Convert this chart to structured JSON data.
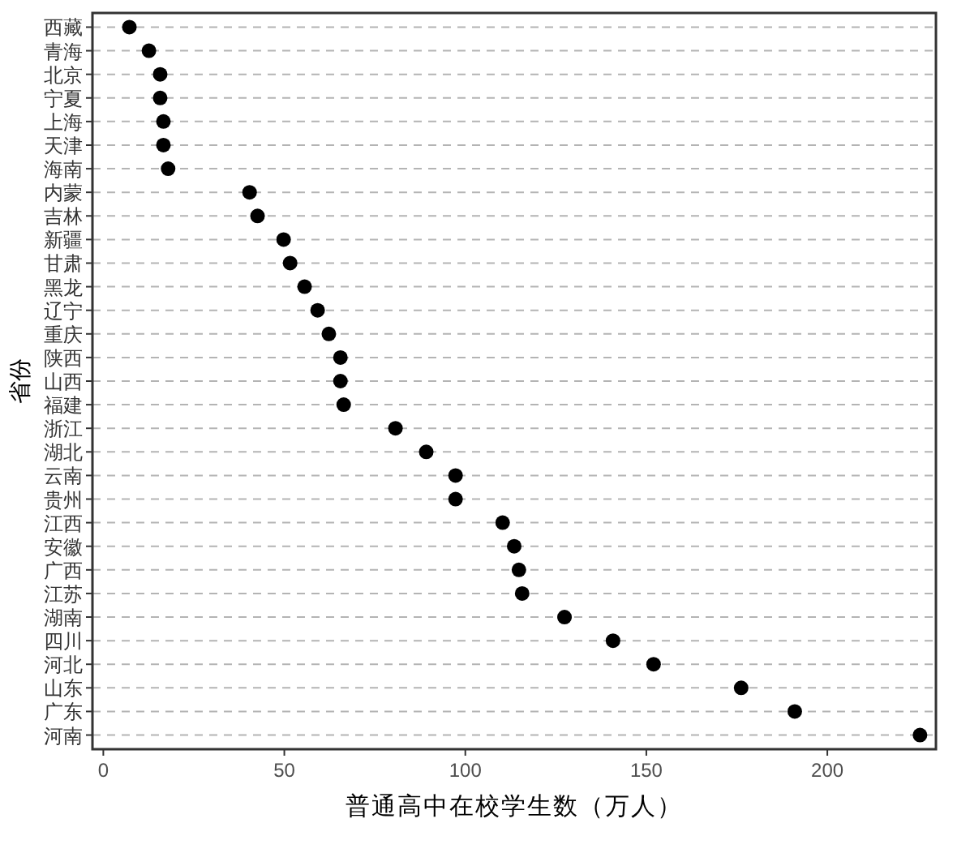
{
  "chart_data": {
    "type": "scatter",
    "orientation": "horizontal",
    "xlabel": "普通高中在校学生数（万人）",
    "ylabel": "省份",
    "categories": [
      "西藏",
      "青海",
      "北京",
      "宁夏",
      "上海",
      "天津",
      "海南",
      "内蒙",
      "吉林",
      "新疆",
      "甘肃",
      "黑龙",
      "辽宁",
      "重庆",
      "陕西",
      "山西",
      "福建",
      "浙江",
      "湖北",
      "云南",
      "贵州",
      "江西",
      "安徽",
      "广西",
      "江苏",
      "湖南",
      "四川",
      "河北",
      "山东",
      "广东",
      "河南"
    ],
    "values": [
      7.2,
      12.6,
      15.7,
      15.7,
      16.6,
      16.6,
      17.9,
      40.4,
      42.6,
      49.8,
      51.6,
      55.6,
      59.2,
      62.3,
      65.5,
      65.5,
      66.4,
      80.7,
      89.2,
      97.3,
      97.3,
      110.3,
      113.5,
      114.8,
      115.7,
      127.4,
      140.8,
      152,
      176.2,
      191,
      225.6
    ],
    "color": "#000000",
    "marker": "circle",
    "grid": "y",
    "xlim": [
      -3,
      230
    ],
    "xticks": [
      0,
      50,
      100,
      150,
      200
    ]
  }
}
